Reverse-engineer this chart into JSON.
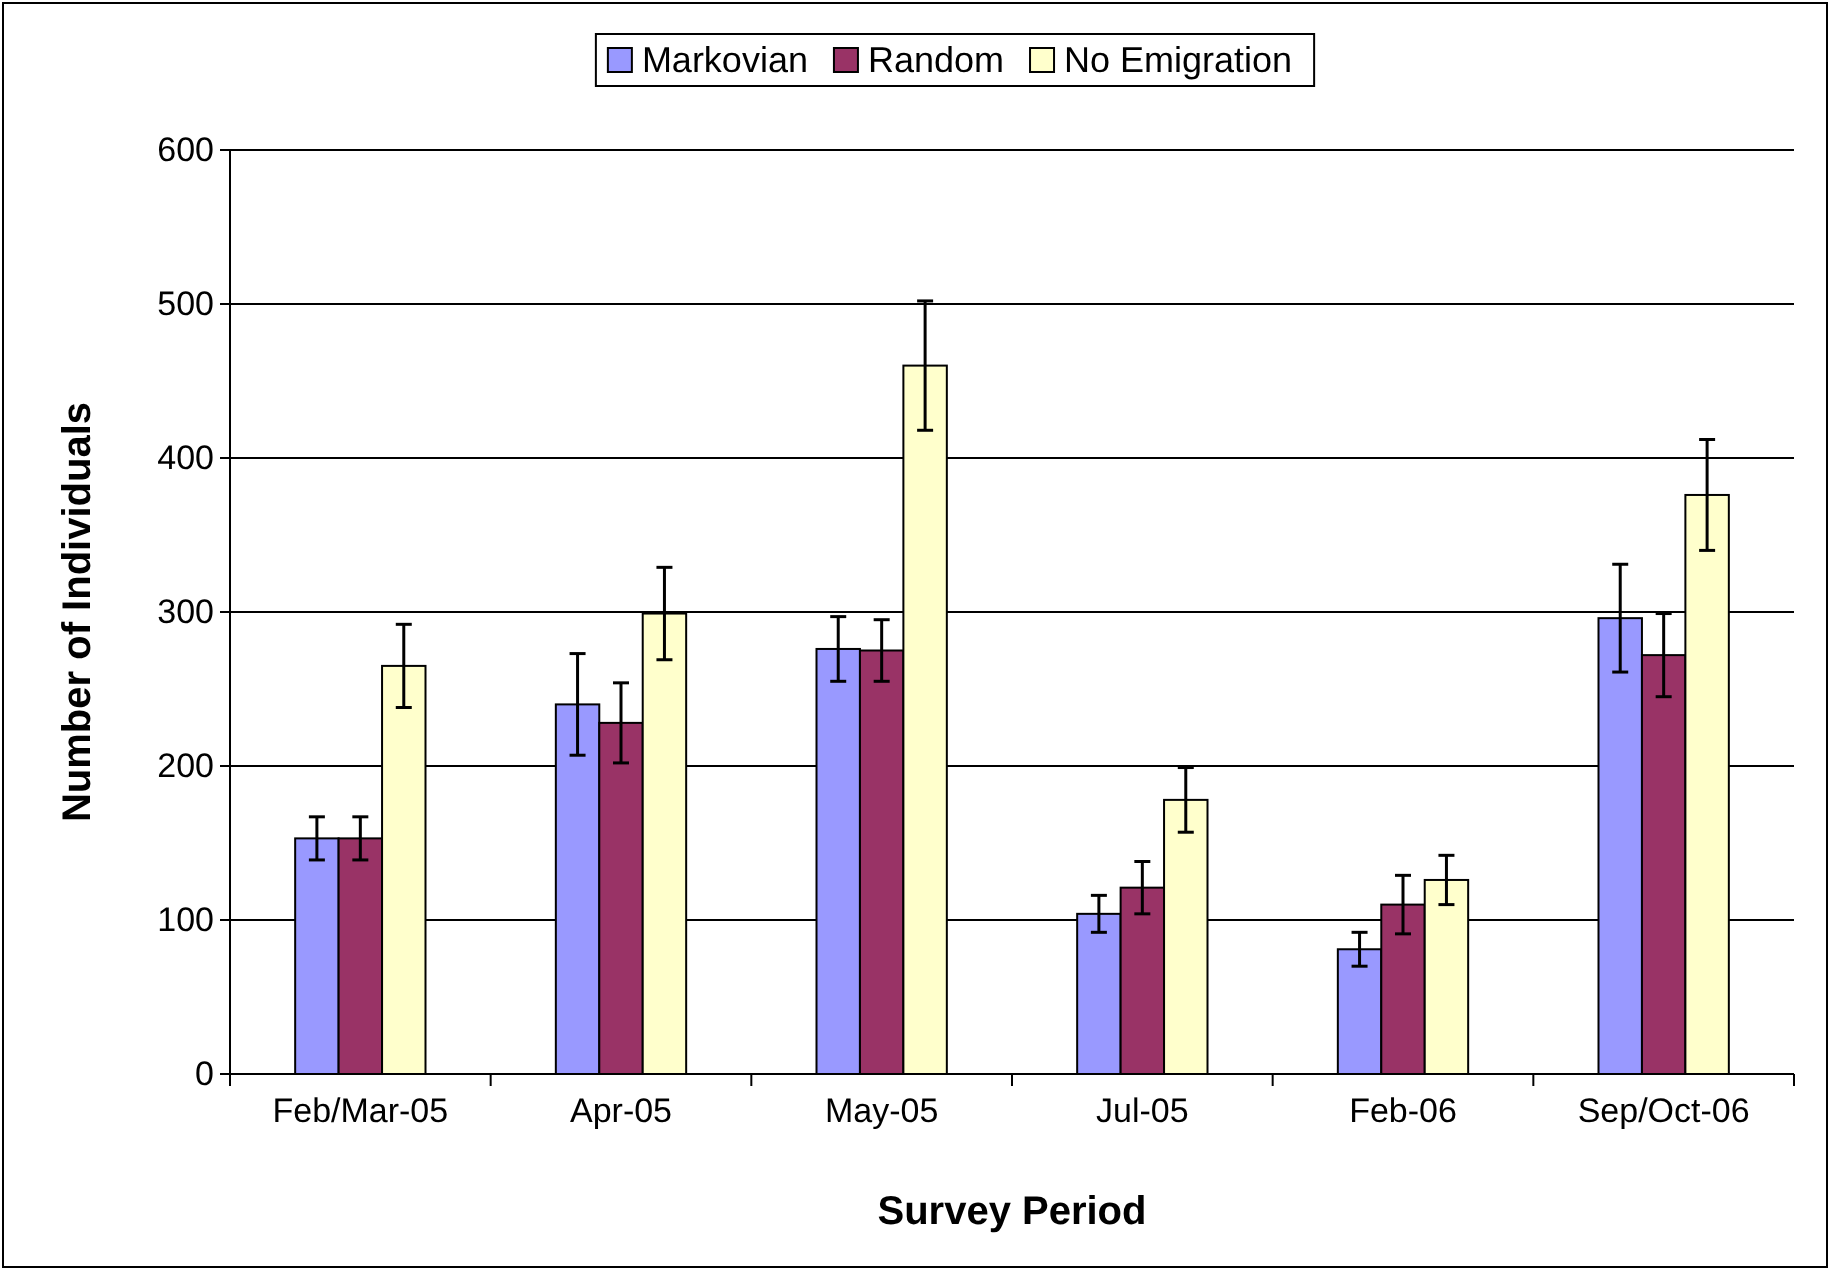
{
  "chart_data": {
    "type": "bar",
    "xlabel": "Survey Period",
    "ylabel": "Number of Individuals",
    "categories": [
      "Feb/Mar-05",
      "Apr-05",
      "May-05",
      "Jul-05",
      "Feb-06",
      "Sep/Oct-06"
    ],
    "series": [
      {
        "name": "Markovian",
        "color": "#9999ff",
        "values": [
          153,
          240,
          276,
          104,
          81,
          296
        ],
        "errors": [
          14,
          33,
          21,
          12,
          11,
          35
        ]
      },
      {
        "name": "Random",
        "color": "#993366",
        "values": [
          153,
          228,
          275,
          121,
          110,
          272
        ],
        "errors": [
          14,
          26,
          20,
          17,
          19,
          27
        ]
      },
      {
        "name": "No Emigration",
        "color": "#ffffcc",
        "values": [
          265,
          299,
          460,
          178,
          126,
          376
        ],
        "errors": [
          27,
          30,
          42,
          21,
          16,
          36
        ]
      }
    ],
    "ylim": [
      0,
      600
    ],
    "yticks": [
      0,
      100,
      200,
      300,
      400,
      500,
      600
    ],
    "grid": "y",
    "legend": "top"
  }
}
